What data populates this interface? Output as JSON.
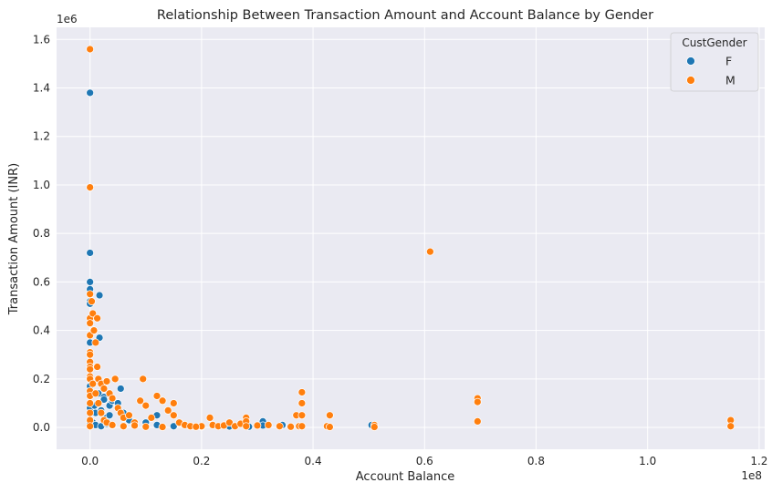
{
  "chart_data": {
    "type": "scatter",
    "title": "Relationship Between Transaction Amount and Account Balance by Gender",
    "xlabel": "Account Balance",
    "ylabel": "Transaction Amount (INR)",
    "x_offset_label": "1e8",
    "y_offset_label": "1e6",
    "xlim": [
      -6000000.0,
      121000000.0
    ],
    "ylim": [
      -90000.0,
      1650000.0
    ],
    "x_ticks": [
      0,
      20000000.0,
      40000000.0,
      60000000.0,
      80000000.0,
      100000000.0,
      120000000.0
    ],
    "x_tick_labels": [
      "0.0",
      "0.2",
      "0.4",
      "0.6",
      "0.8",
      "1.0",
      "1.2"
    ],
    "y_ticks": [
      0,
      200000,
      400000,
      600000,
      800000,
      1000000,
      1200000,
      1400000,
      1600000
    ],
    "y_tick_labels": [
      "0.0",
      "0.2",
      "0.4",
      "0.6",
      "0.8",
      "1.0",
      "1.2",
      "1.4",
      "1.6"
    ],
    "grid": true,
    "legend": {
      "title": "CustGender",
      "placement": "top-right"
    },
    "series": [
      {
        "name": "F",
        "color": "#1f77b4",
        "points": [
          [
            0,
            1380000
          ],
          [
            0,
            720000
          ],
          [
            0,
            600000
          ],
          [
            0,
            570000
          ],
          [
            0,
            520000
          ],
          [
            0,
            510000
          ],
          [
            0,
            350000
          ],
          [
            0,
            170000
          ],
          [
            0,
            80000
          ],
          [
            0,
            20000
          ],
          [
            1700000,
            545000
          ],
          [
            1700000,
            370000
          ],
          [
            1000000,
            60000
          ],
          [
            1500000,
            140000
          ],
          [
            2500000,
            125000
          ],
          [
            2500000,
            115000
          ],
          [
            3000000,
            40000
          ],
          [
            3500000,
            90000
          ],
          [
            4000000,
            110000
          ],
          [
            5000000,
            100000
          ],
          [
            5500000,
            160000
          ],
          [
            6000000,
            60000
          ],
          [
            500000,
            20000
          ],
          [
            1000000,
            10000
          ],
          [
            2000000,
            5000
          ],
          [
            3000000,
            15000
          ],
          [
            4000000,
            8000
          ],
          [
            7000000,
            30000
          ],
          [
            10000000,
            20000
          ],
          [
            12000000,
            50000
          ],
          [
            12000000,
            10000
          ],
          [
            15000000,
            5000
          ],
          [
            20000000,
            3000
          ],
          [
            25000000,
            4000
          ],
          [
            28500000,
            3000
          ],
          [
            31000000,
            25000
          ],
          [
            31000000,
            8000
          ],
          [
            34500000,
            10000
          ],
          [
            50500000,
            10000
          ],
          [
            800000,
            90000
          ],
          [
            2000000,
            70000
          ],
          [
            3500000,
            50000
          ]
        ]
      },
      {
        "name": "M",
        "color": "#ff7f0e",
        "points": [
          [
            0,
            1560000
          ],
          [
            0,
            990000
          ],
          [
            0,
            550000
          ],
          [
            0,
            450000
          ],
          [
            0,
            430000
          ],
          [
            0,
            380000
          ],
          [
            0,
            310000
          ],
          [
            0,
            300000
          ],
          [
            0,
            270000
          ],
          [
            0,
            250000
          ],
          [
            0,
            240000
          ],
          [
            0,
            210000
          ],
          [
            0,
            200000
          ],
          [
            0,
            150000
          ],
          [
            0,
            130000
          ],
          [
            0,
            100000
          ],
          [
            0,
            60000
          ],
          [
            0,
            30000
          ],
          [
            0,
            5000
          ],
          [
            300000,
            520000
          ],
          [
            500000,
            470000
          ],
          [
            700000,
            400000
          ],
          [
            1000000,
            350000
          ],
          [
            1300000,
            450000
          ],
          [
            1300000,
            250000
          ],
          [
            1500000,
            200000
          ],
          [
            2000000,
            180000
          ],
          [
            2500000,
            160000
          ],
          [
            3000000,
            190000
          ],
          [
            3500000,
            140000
          ],
          [
            4000000,
            120000
          ],
          [
            4500000,
            200000
          ],
          [
            5000000,
            80000
          ],
          [
            5500000,
            60000
          ],
          [
            6000000,
            40000
          ],
          [
            7000000,
            50000
          ],
          [
            8000000,
            20000
          ],
          [
            9000000,
            110000
          ],
          [
            9500000,
            200000
          ],
          [
            10000000,
            90000
          ],
          [
            11000000,
            40000
          ],
          [
            12000000,
            130000
          ],
          [
            13000000,
            110000
          ],
          [
            14000000,
            70000
          ],
          [
            15000000,
            100000
          ],
          [
            15000000,
            50000
          ],
          [
            16000000,
            20000
          ],
          [
            17000000,
            10000
          ],
          [
            18000000,
            5000
          ],
          [
            20000000,
            5000
          ],
          [
            21500000,
            40000
          ],
          [
            22000000,
            10000
          ],
          [
            23000000,
            5000
          ],
          [
            24000000,
            8000
          ],
          [
            25000000,
            20000
          ],
          [
            26000000,
            5000
          ],
          [
            27000000,
            15000
          ],
          [
            28000000,
            40000
          ],
          [
            28000000,
            25000
          ],
          [
            28000000,
            5000
          ],
          [
            30000000,
            8000
          ],
          [
            32000000,
            10000
          ],
          [
            34000000,
            5000
          ],
          [
            36000000,
            3000
          ],
          [
            37000000,
            50000
          ],
          [
            37500000,
            5000
          ],
          [
            38000000,
            145000
          ],
          [
            38000000,
            100000
          ],
          [
            38000000,
            50000
          ],
          [
            38000000,
            5000
          ],
          [
            42500000,
            5000
          ],
          [
            43000000,
            50000
          ],
          [
            43000000,
            2000
          ],
          [
            51000000,
            10000
          ],
          [
            51000000,
            2000
          ],
          [
            61000000,
            725000
          ],
          [
            69500000,
            120000
          ],
          [
            69500000,
            105000
          ],
          [
            69500000,
            25000
          ],
          [
            114900000,
            30000
          ],
          [
            114900000,
            5000
          ],
          [
            500000,
            180000
          ],
          [
            1000000,
            140000
          ],
          [
            1500000,
            100000
          ],
          [
            2000000,
            60000
          ],
          [
            2500000,
            30000
          ],
          [
            3000000,
            20000
          ],
          [
            4000000,
            10000
          ],
          [
            6000000,
            5000
          ],
          [
            8000000,
            8000
          ],
          [
            10000000,
            3000
          ],
          [
            13000000,
            2000
          ],
          [
            19000000,
            3000
          ]
        ]
      }
    ]
  }
}
